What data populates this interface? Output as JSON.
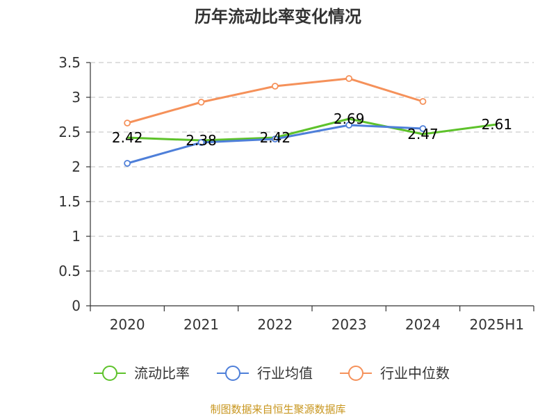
{
  "chart_data": {
    "type": "line",
    "title": "历年流动比率变化情况",
    "categories": [
      "2020",
      "2021",
      "2022",
      "2023",
      "2024",
      "2025H1"
    ],
    "ylim": [
      0,
      3.5
    ],
    "yticks": [
      "0",
      "0.5",
      "1",
      "1.5",
      "2",
      "2.5",
      "3",
      "3.5"
    ],
    "grid": true,
    "legend_position": "bottom",
    "series": [
      {
        "name": "流动比率",
        "color": "#5ec22b",
        "values": [
          2.42,
          2.38,
          2.42,
          2.69,
          2.47,
          2.61
        ],
        "labels": [
          "2.42",
          "2.38",
          "2.42",
          "2.69",
          "2.47",
          "2.61"
        ]
      },
      {
        "name": "行业均值",
        "color": "#4e7fd9",
        "values": [
          2.05,
          2.35,
          2.4,
          2.6,
          2.55,
          null
        ]
      },
      {
        "name": "行业中位数",
        "color": "#f5915a",
        "values": [
          2.63,
          2.93,
          3.16,
          3.27,
          2.94,
          null
        ]
      }
    ]
  },
  "source": "制图数据来自恒生聚源数据库"
}
